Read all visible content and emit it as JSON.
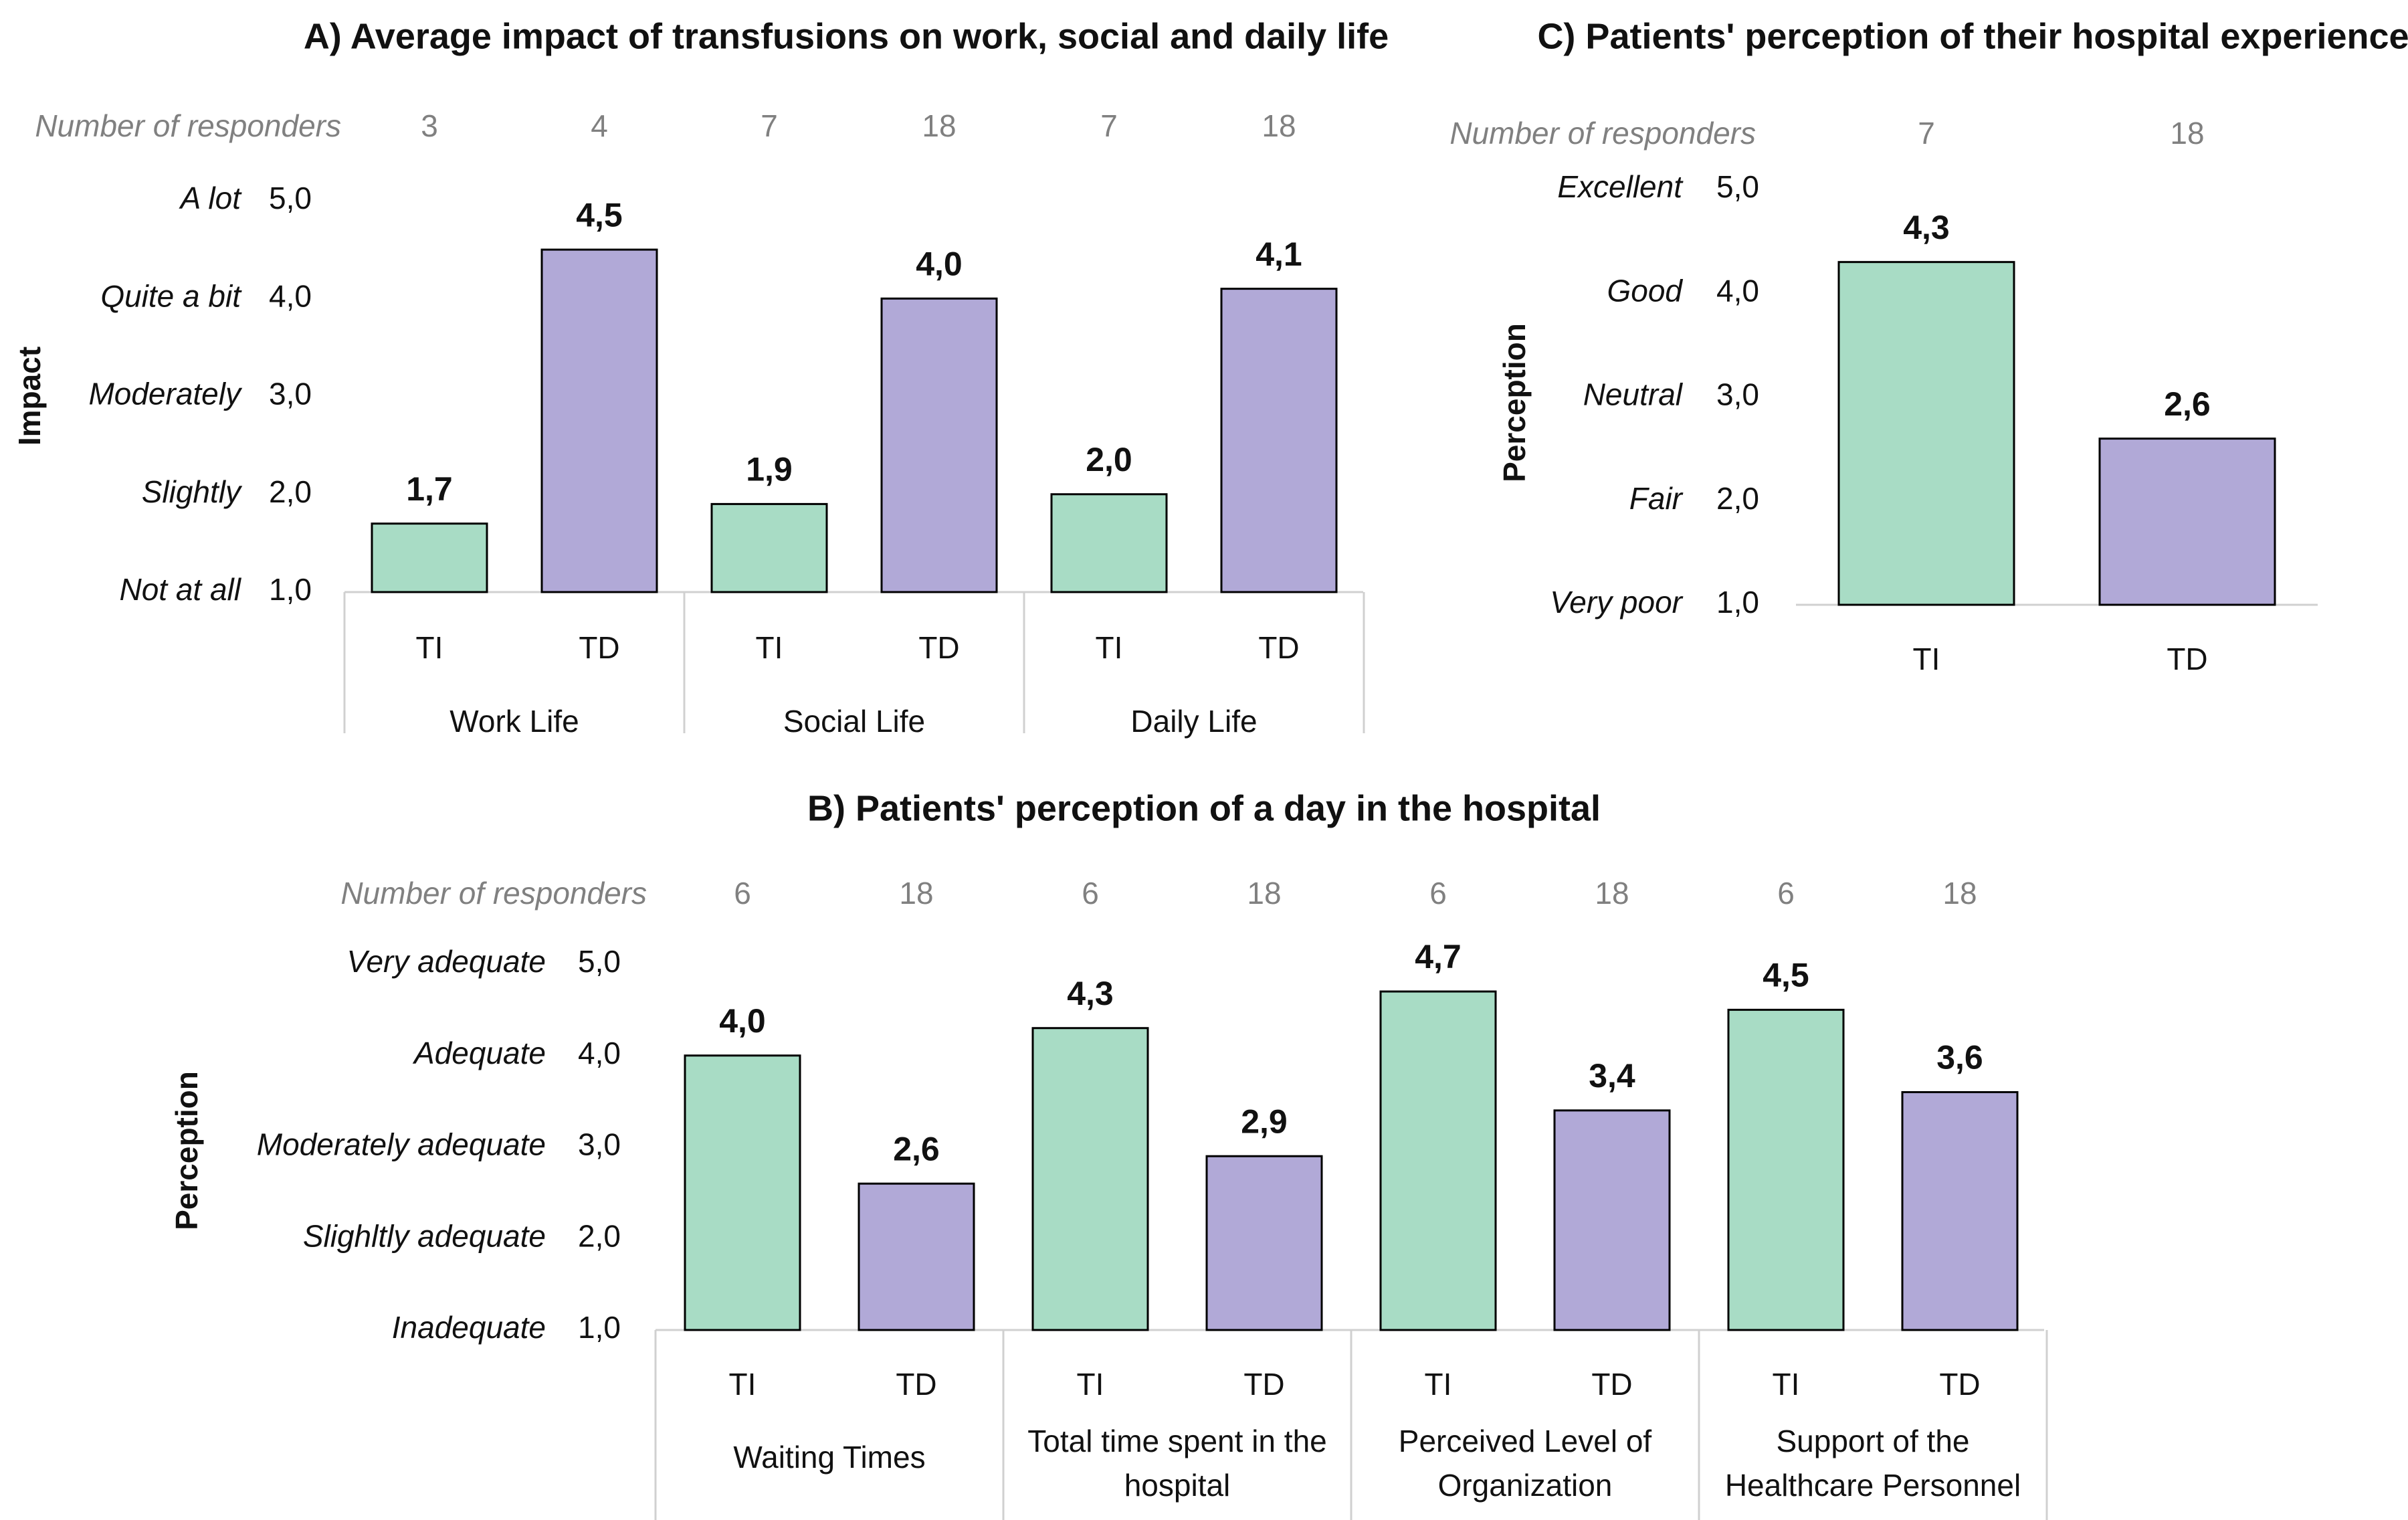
{
  "colors": {
    "TI": "#a8dcc5",
    "TD": "#b1a9d7"
  },
  "chart_data": [
    {
      "id": "A",
      "type": "bar",
      "title": "A) Average impact of transfusions on work, social and daily life",
      "responders_label": "Number of responders",
      "ylabel": "Impact",
      "ylim": [
        1,
        5
      ],
      "yticks": [
        "1,0",
        "2,0",
        "3,0",
        "4,0",
        "5,0"
      ],
      "ycategories": [
        "Not at all",
        "Slightly",
        "Moderately",
        "Quite a bit",
        "A lot"
      ],
      "groups": [
        "Work Life",
        "Social Life",
        "Daily Life"
      ],
      "series_names": [
        "TI",
        "TD"
      ],
      "bars": [
        {
          "group": 0,
          "series": "TI",
          "value": 1.7,
          "label": "1,7",
          "responders": "3"
        },
        {
          "group": 0,
          "series": "TD",
          "value": 4.5,
          "label": "4,5",
          "responders": "4"
        },
        {
          "group": 1,
          "series": "TI",
          "value": 1.9,
          "label": "1,9",
          "responders": "7"
        },
        {
          "group": 1,
          "series": "TD",
          "value": 4.0,
          "label": "4,0",
          "responders": "18"
        },
        {
          "group": 2,
          "series": "TI",
          "value": 2.0,
          "label": "2,0",
          "responders": "7"
        },
        {
          "group": 2,
          "series": "TD",
          "value": 4.1,
          "label": "4,1",
          "responders": "18"
        }
      ]
    },
    {
      "id": "C",
      "type": "bar",
      "title": "C) Patients' perception of their hospital experience",
      "responders_label": "Number of responders",
      "ylabel": "Perception",
      "ylim": [
        1,
        5
      ],
      "yticks": [
        "1,0",
        "2,0",
        "3,0",
        "4,0",
        "5,0"
      ],
      "ycategories": [
        "Very poor",
        "Fair",
        "Neutral",
        "Good",
        "Excellent"
      ],
      "groups": [],
      "series_names": [
        "TI",
        "TD"
      ],
      "bars": [
        {
          "group": 0,
          "series": "TI",
          "value": 4.3,
          "label": "4,3",
          "responders": "7"
        },
        {
          "group": 0,
          "series": "TD",
          "value": 2.6,
          "label": "2,6",
          "responders": "18"
        }
      ]
    },
    {
      "id": "B",
      "type": "bar",
      "title": "B) Patients' perception of a day in the hospital",
      "responders_label": "Number of responders",
      "ylabel": "Perception",
      "ylim": [
        1,
        5
      ],
      "yticks": [
        "1,0",
        "2,0",
        "3,0",
        "4,0",
        "5,0"
      ],
      "ycategories": [
        "Inadequate",
        "Slighltly adequate",
        "Moderately adequate",
        "Adequate",
        "Very adequate"
      ],
      "groups": [
        "Waiting Times",
        "Total time spent in the hospital",
        "Perceived Level of Organization",
        "Support of the Healthcare Personnel"
      ],
      "series_names": [
        "TI",
        "TD"
      ],
      "bars": [
        {
          "group": 0,
          "series": "TI",
          "value": 4.0,
          "label": "4,0",
          "responders": "6"
        },
        {
          "group": 0,
          "series": "TD",
          "value": 2.6,
          "label": "2,6",
          "responders": "18"
        },
        {
          "group": 1,
          "series": "TI",
          "value": 4.3,
          "label": "4,3",
          "responders": "6"
        },
        {
          "group": 1,
          "series": "TD",
          "value": 2.9,
          "label": "2,9",
          "responders": "18"
        },
        {
          "group": 2,
          "series": "TI",
          "value": 4.7,
          "label": "4,7",
          "responders": "6"
        },
        {
          "group": 2,
          "series": "TD",
          "value": 3.4,
          "label": "3,4",
          "responders": "18"
        },
        {
          "group": 3,
          "series": "TI",
          "value": 4.5,
          "label": "4,5",
          "responders": "6"
        },
        {
          "group": 3,
          "series": "TD",
          "value": 3.6,
          "label": "3,6",
          "responders": "18"
        }
      ]
    }
  ]
}
